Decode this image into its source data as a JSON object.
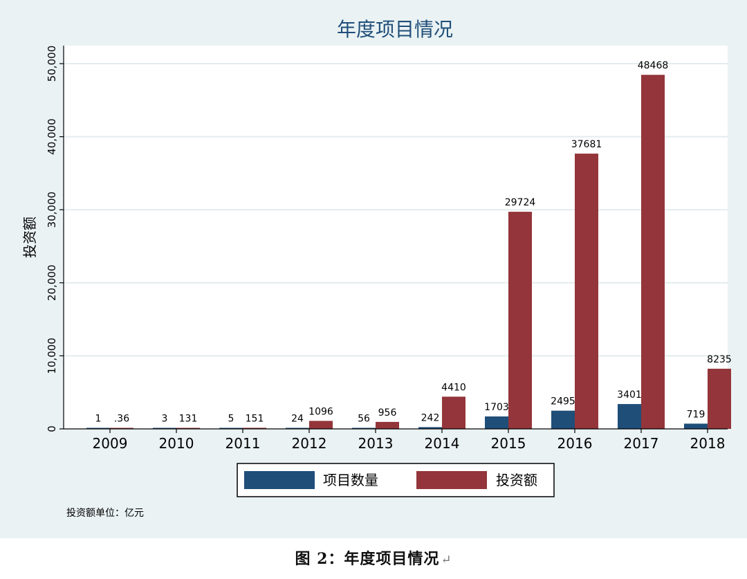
{
  "chart_data": {
    "type": "bar",
    "title": "年度项目情况",
    "ylabel": "投资额",
    "xlabel": "",
    "categories": [
      "2009",
      "2010",
      "2011",
      "2012",
      "2013",
      "2014",
      "2015",
      "2016",
      "2017",
      "2018"
    ],
    "series": [
      {
        "name": "项目数量",
        "values": [
          1,
          3,
          5,
          24,
          56,
          242,
          1703,
          2495,
          3401,
          719
        ],
        "labels": [
          "1",
          "3",
          "5",
          "24",
          "56",
          "242",
          "1703",
          "2495",
          "3401",
          "719"
        ],
        "color": "#1f4e79"
      },
      {
        "name": "投资额",
        "values": [
          0.36,
          131,
          151,
          1096,
          956,
          4410,
          29724,
          37681,
          48468,
          8235
        ],
        "labels": [
          ".36",
          "131",
          "151",
          "1096",
          "956",
          "4410",
          "29724",
          "37681",
          "48468",
          "8235"
        ],
        "color": "#93353a"
      }
    ],
    "ylim": [
      0,
      50000
    ],
    "yticks": [
      0,
      10000,
      20000,
      30000,
      40000,
      50000
    ],
    "ytick_labels": [
      "0",
      "10,000",
      "20,000",
      "30,000",
      "40,000",
      "50,000"
    ],
    "grid": true,
    "legend_position": "bottom",
    "note": "投资额单位：亿元",
    "colors": {
      "background": "#eaf2f3",
      "plot_background": "#ffffff",
      "gridline": "#e3ecee",
      "title": "#1f4e79"
    }
  },
  "caption": {
    "text": "图 2：年度项目情况",
    "return_mark": "↵"
  }
}
